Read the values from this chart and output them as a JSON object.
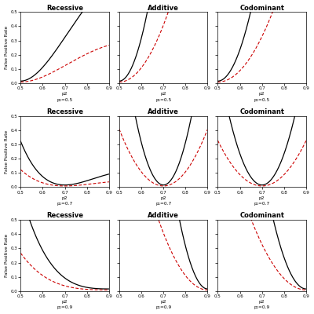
{
  "titles_col": [
    "Recessive",
    "Additive",
    "Codominant"
  ],
  "p1_values": [
    0.5,
    0.7,
    0.9
  ],
  "xlim": [
    0.5,
    0.9
  ],
  "ylim": [
    0.0,
    0.5
  ],
  "ylabel": "False Positive Rate",
  "background_color": "#ffffff",
  "xticks": [
    0.5,
    0.6,
    0.7,
    0.8,
    0.9
  ],
  "yticks": [
    0.0,
    0.1,
    0.2,
    0.3,
    0.4,
    0.5
  ],
  "black_color": "#000000",
  "red_color": "#cc0000"
}
